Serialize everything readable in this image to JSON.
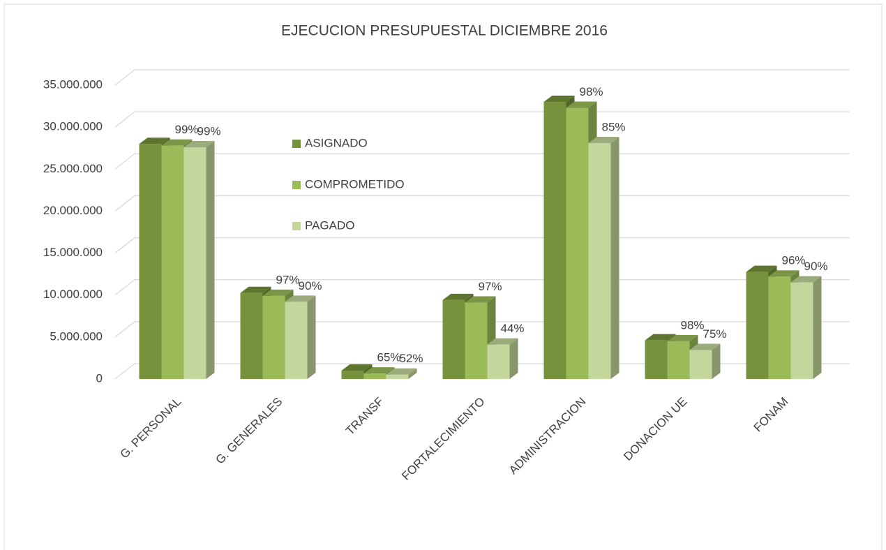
{
  "chart_data": {
    "type": "bar3d",
    "title": "EJECUCION PRESUPUESTAL DICIEMBRE 2016",
    "categories": [
      "G. PERSONAL",
      "G. GENERALES",
      "TRANSF",
      "FORTALECIMIENTO",
      "ADMINISTRACION",
      "DONACION UE",
      "FONAM"
    ],
    "series": [
      {
        "name": "ASIGNADO",
        "color": "#76923c",
        "values": [
          28000000,
          10250000,
          1000000,
          9400000,
          33000000,
          4600000,
          12750000
        ]
      },
      {
        "name": "COMPROMETIDO",
        "color": "#9bbb59",
        "values": [
          27800000,
          9900000,
          650000,
          9100000,
          32300000,
          4500000,
          12200000
        ],
        "percent_labels": [
          "99%",
          "97%",
          "65%",
          "97%",
          "98%",
          "98%",
          "96%"
        ]
      },
      {
        "name": "PAGADO",
        "color": "#c3d69b",
        "values": [
          27600000,
          9200000,
          520000,
          4100000,
          28100000,
          3450000,
          11500000
        ],
        "percent_labels": [
          "99%",
          "90%",
          "52%",
          "44%",
          "85%",
          "75%",
          "90%"
        ]
      }
    ],
    "ylim": [
      0,
      35000000
    ],
    "yticks": [
      {
        "value": 0,
        "label": "0"
      },
      {
        "value": 5000000,
        "label": "5.000.000"
      },
      {
        "value": 10000000,
        "label": "10.000.000"
      },
      {
        "value": 15000000,
        "label": "15.000.000"
      },
      {
        "value": 20000000,
        "label": "20.000.000"
      },
      {
        "value": 25000000,
        "label": "25.000.000"
      },
      {
        "value": 30000000,
        "label": "30.000.000"
      },
      {
        "value": 35000000,
        "label": "35.000.000"
      }
    ],
    "grid": true
  }
}
